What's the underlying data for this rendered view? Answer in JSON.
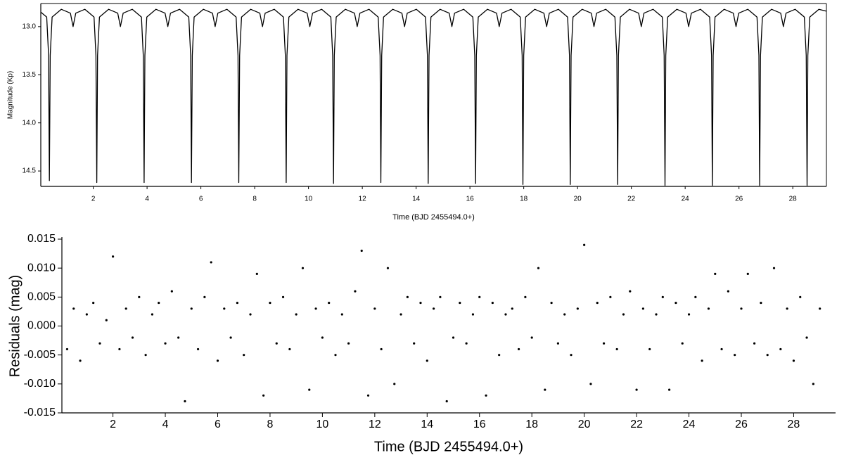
{
  "chart_data": [
    {
      "type": "line",
      "x_label": "Time (BJD 2455494.0+)",
      "y_label": "Magnitude (Kp)",
      "color": "#000000",
      "y_inverted": true,
      "xlim": [
        0.05,
        29.25
      ],
      "ylim": [
        12.76,
        14.66
      ],
      "xticks": [
        2,
        4,
        6,
        8,
        10,
        12,
        14,
        16,
        18,
        20,
        22,
        24,
        26,
        28
      ],
      "yticks": [
        {
          "value": 13,
          "label": "13.0"
        },
        13.5,
        {
          "value": 14,
          "label": "14.0"
        },
        14.5
      ],
      "series": [
        {
          "name": null,
          "color": "#000000",
          "x": [
            0.05,
            0.27,
            0.34,
            0.37,
            0.4,
            0.47,
            0.81,
            1.15,
            1.25,
            1.35,
            1.69,
            2.03,
            2.1,
            2.13,
            2.16,
            2.23,
            2.57,
            2.91,
            3.01,
            3.11,
            3.45,
            3.79,
            3.86,
            3.89,
            3.92,
            3.99,
            4.33,
            4.67,
            4.77,
            4.87,
            5.21,
            5.55,
            5.62,
            5.65,
            5.68,
            5.75,
            6.09,
            6.43,
            6.53,
            6.63,
            6.97,
            7.31,
            7.38,
            7.41,
            7.44,
            7.51,
            7.85,
            8.19,
            8.29,
            8.39,
            8.73,
            9.07,
            9.14,
            9.17,
            9.2,
            9.27,
            9.61,
            9.95,
            10.05,
            10.15,
            10.49,
            10.83,
            10.9,
            10.93,
            10.96,
            11.03,
            11.37,
            11.71,
            11.81,
            11.91,
            12.25,
            12.59,
            12.66,
            12.69,
            12.72,
            12.79,
            13.13,
            13.47,
            13.57,
            13.67,
            14.01,
            14.35,
            14.42,
            14.45,
            14.48,
            14.55,
            14.89,
            15.23,
            15.33,
            15.43,
            15.77,
            16.11,
            16.18,
            16.21,
            16.24,
            16.31,
            16.65,
            16.99,
            17.09,
            17.19,
            17.53,
            17.87,
            17.94,
            17.97,
            18.0,
            18.07,
            18.41,
            18.75,
            18.85,
            18.95,
            19.29,
            19.63,
            19.7,
            19.73,
            19.76,
            19.83,
            20.17,
            20.51,
            20.61,
            20.71,
            21.05,
            21.39,
            21.46,
            21.49,
            21.52,
            21.59,
            21.93,
            22.27,
            22.37,
            22.47,
            22.81,
            23.15,
            23.22,
            23.25,
            23.28,
            23.35,
            23.69,
            24.03,
            24.13,
            24.23,
            24.57,
            24.91,
            24.98,
            25.01,
            25.04,
            25.11,
            25.45,
            25.79,
            25.89,
            25.99,
            26.33,
            26.67,
            26.74,
            26.77,
            26.8,
            26.87,
            27.21,
            27.55,
            27.65,
            27.75,
            28.09,
            28.43,
            28.5,
            28.53,
            28.56,
            28.63,
            28.97,
            29.25
          ],
          "values": [
            12.85,
            12.9,
            13.3,
            14.6,
            13.3,
            12.9,
            12.82,
            12.86,
            13.0,
            12.86,
            12.82,
            12.9,
            13.3,
            14.62,
            13.3,
            12.9,
            12.82,
            12.86,
            13.0,
            12.86,
            12.82,
            12.9,
            13.3,
            14.62,
            13.3,
            12.9,
            12.82,
            12.86,
            13.0,
            12.86,
            12.82,
            12.9,
            13.3,
            14.62,
            13.3,
            12.9,
            12.82,
            12.86,
            13.0,
            12.86,
            12.82,
            12.9,
            13.3,
            14.62,
            13.3,
            12.9,
            12.82,
            12.86,
            13.0,
            12.86,
            12.82,
            12.9,
            13.3,
            14.62,
            13.3,
            12.9,
            12.82,
            12.86,
            13.0,
            12.86,
            12.82,
            12.9,
            13.3,
            14.63,
            13.3,
            12.9,
            12.82,
            12.86,
            13.0,
            12.86,
            12.82,
            12.9,
            13.3,
            14.62,
            13.3,
            12.9,
            12.82,
            12.86,
            13.0,
            12.86,
            12.82,
            12.9,
            13.3,
            14.63,
            13.3,
            12.9,
            12.82,
            12.86,
            13.0,
            12.86,
            12.82,
            12.9,
            13.3,
            14.63,
            13.3,
            12.9,
            12.82,
            12.86,
            13.0,
            12.86,
            12.82,
            12.9,
            13.3,
            14.64,
            13.3,
            12.9,
            12.82,
            12.86,
            13.0,
            12.86,
            12.82,
            12.9,
            13.3,
            14.64,
            13.3,
            12.9,
            12.82,
            12.86,
            13.0,
            12.86,
            12.82,
            12.9,
            13.3,
            14.64,
            13.3,
            12.9,
            12.82,
            12.86,
            13.0,
            12.86,
            12.82,
            12.9,
            13.3,
            14.65,
            13.3,
            12.9,
            12.82,
            12.86,
            13.0,
            12.86,
            12.82,
            12.9,
            13.3,
            14.65,
            13.3,
            12.9,
            12.82,
            12.86,
            13.0,
            12.86,
            12.82,
            12.9,
            13.3,
            14.65,
            13.3,
            12.9,
            12.82,
            12.86,
            13.0,
            12.86,
            12.82,
            12.9,
            13.3,
            14.65,
            13.3,
            12.9,
            12.82,
            12.84
          ]
        }
      ]
    },
    {
      "type": "scatter",
      "x_label": "Time (BJD 2455494.0+)",
      "y_label": "Residuals (mag)",
      "color": "#000000",
      "xlim": [
        0.05,
        29.6
      ],
      "ylim": [
        -0.015,
        0.015
      ],
      "xticks": [
        2,
        4,
        6,
        8,
        10,
        12,
        14,
        16,
        18,
        20,
        22,
        24,
        26,
        28
      ],
      "yticks": [
        -0.015,
        {
          "value": -0.01,
          "label": "-0.010"
        },
        -0.005,
        {
          "value": 0,
          "label": "0.000"
        },
        0.005,
        {
          "value": 0.01,
          "label": "0.010"
        },
        0.015
      ],
      "series": [
        {
          "name": null,
          "color": "#000000",
          "x": [
            0.25,
            0.5,
            0.75,
            1,
            1.25,
            1.5,
            1.75,
            2,
            2.25,
            2.5,
            2.75,
            3,
            3.25,
            3.5,
            3.75,
            4,
            4.25,
            4.5,
            4.75,
            5,
            5.25,
            5.5,
            5.75,
            6,
            6.25,
            6.5,
            6.75,
            7,
            7.25,
            7.5,
            7.75,
            8,
            8.25,
            8.5,
            8.75,
            9,
            9.25,
            9.5,
            9.75,
            10,
            10.25,
            10.5,
            10.75,
            11,
            11.25,
            11.5,
            11.75,
            12,
            12.25,
            12.5,
            12.75,
            13,
            13.25,
            13.5,
            13.75,
            14,
            14.25,
            14.5,
            14.75,
            15,
            15.25,
            15.5,
            15.75,
            16,
            16.25,
            16.5,
            16.75,
            17,
            17.25,
            17.5,
            17.75,
            18,
            18.25,
            18.5,
            18.75,
            19,
            19.25,
            19.5,
            19.75,
            20,
            20.25,
            20.5,
            20.75,
            21,
            21.25,
            21.5,
            21.75,
            22,
            22.25,
            22.5,
            22.75,
            23,
            23.25,
            23.5,
            23.75,
            24,
            24.25,
            24.5,
            24.75,
            25,
            25.25,
            25.5,
            25.75,
            26,
            26.25,
            26.5,
            26.75,
            27,
            27.25,
            27.5,
            27.75,
            28,
            28.25,
            28.5,
            28.75,
            29
          ],
          "values": [
            -0.004,
            0.003,
            -0.006,
            0.002,
            0.004,
            -0.003,
            0.001,
            0.012,
            -0.004,
            0.003,
            -0.002,
            0.005,
            -0.005,
            0.002,
            0.004,
            -0.003,
            0.006,
            -0.002,
            -0.013,
            0.003,
            -0.004,
            0.005,
            0.011,
            -0.006,
            0.003,
            -0.002,
            0.004,
            -0.005,
            0.002,
            0.009,
            -0.012,
            0.004,
            -0.003,
            0.005,
            -0.004,
            0.002,
            0.01,
            -0.011,
            0.003,
            -0.002,
            0.004,
            -0.005,
            0.002,
            -0.003,
            0.006,
            0.013,
            -0.012,
            0.003,
            -0.004,
            0.01,
            -0.01,
            0.002,
            0.005,
            -0.003,
            0.004,
            -0.006,
            0.003,
            0.005,
            -0.013,
            -0.002,
            0.004,
            -0.003,
            0.002,
            0.005,
            -0.012,
            0.004,
            -0.005,
            0.002,
            0.003,
            -0.004,
            0.005,
            -0.002,
            0.01,
            -0.011,
            0.004,
            -0.003,
            0.002,
            -0.005,
            0.003,
            0.014,
            -0.01,
            0.004,
            -0.003,
            0.005,
            -0.004,
            0.002,
            0.006,
            -0.011,
            0.003,
            -0.004,
            0.002,
            0.005,
            -0.011,
            0.004,
            -0.003,
            0.002,
            0.005,
            -0.006,
            0.003,
            0.009,
            -0.004,
            0.006,
            -0.005,
            0.003,
            0.009,
            -0.003,
            0.004,
            -0.005,
            0.01,
            -0.004,
            0.003,
            -0.006,
            0.005,
            -0.002,
            -0.01,
            0.003
          ]
        }
      ]
    }
  ]
}
